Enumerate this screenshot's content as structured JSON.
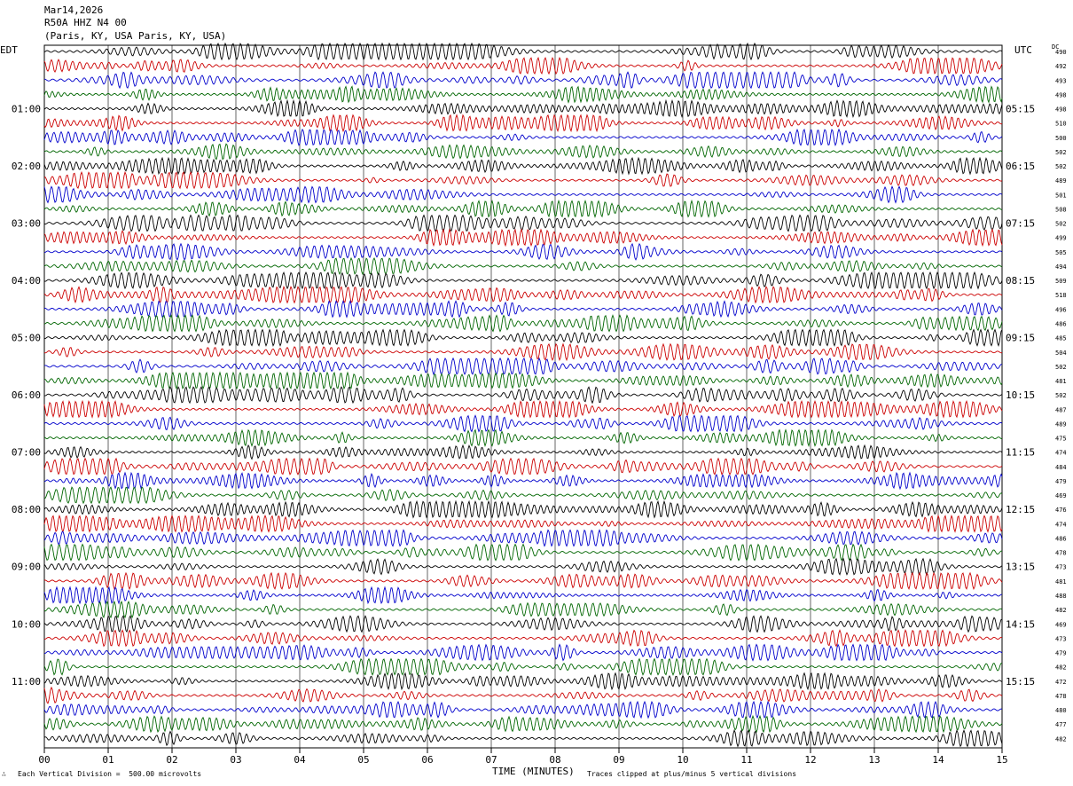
{
  "header": {
    "date": "Mar14,2026",
    "station": "R50A HHZ N4 00",
    "location": "(Paris, KY, USA Paris, KY, USA)"
  },
  "left_axis_label": "EDT",
  "right_axis_label": "UTC",
  "dc_label": "DC",
  "footer": {
    "scale_note": "Each Vertical Division =  500.00 microvolts",
    "clip_note": "Traces clipped at plus/minus 5 vertical divisions",
    "mark": "∴"
  },
  "chart_data": {
    "type": "line",
    "xlabel": "TIME (MINUTES)",
    "x_ticks": [
      "00",
      "01",
      "02",
      "03",
      "04",
      "05",
      "06",
      "07",
      "08",
      "09",
      "10",
      "11",
      "12",
      "13",
      "14",
      "15"
    ],
    "xlim": [
      0,
      15
    ],
    "trace_colors": [
      "#000000",
      "#cc0000",
      "#0000cc",
      "#006600"
    ],
    "left_time_labels": [
      "01:00",
      "02:00",
      "03:00",
      "04:00",
      "05:00",
      "06:00",
      "07:00",
      "08:00",
      "09:00",
      "10:00",
      "11:00"
    ],
    "right_time_labels": [
      "05:15",
      "06:15",
      "07:15",
      "08:15",
      "09:15",
      "10:15",
      "11:15",
      "12:15",
      "13:15",
      "14:15",
      "15:15"
    ],
    "dc_offsets": [
      490,
      492,
      493,
      498,
      498,
      510,
      500,
      502,
      502,
      489,
      501,
      508,
      502,
      499,
      505,
      494,
      509,
      518,
      496,
      486,
      485,
      504,
      502,
      481,
      502,
      487,
      489,
      475,
      474,
      484,
      479,
      469,
      476,
      474,
      486,
      478,
      473,
      481,
      488,
      482,
      469,
      473,
      479,
      482,
      472,
      478,
      480,
      477,
      482
    ]
  }
}
